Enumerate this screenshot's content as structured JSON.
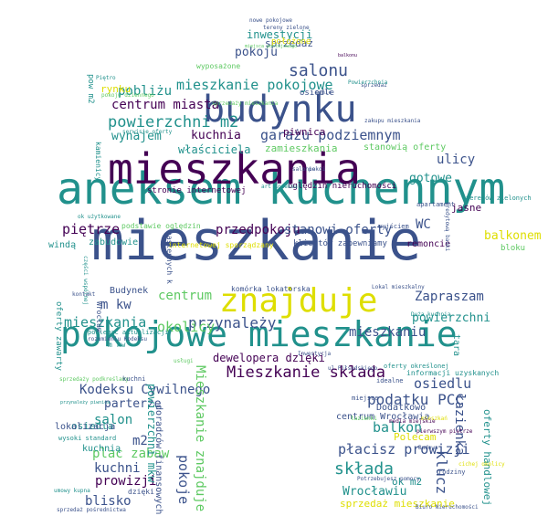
{
  "title": "",
  "palette": {
    "dark_purple": "#440154",
    "indigo": "#3b528b",
    "teal": "#21918c",
    "green": "#5ec962",
    "yellow": "#dede00",
    "background": "#ffffff"
  },
  "words": [
    {
      "text": "mieszkanie",
      "color": "indigo"
    },
    {
      "text": "aneksem kuchennym",
      "color": "teal"
    },
    {
      "text": "mieszkania",
      "color": "dark_purple"
    },
    {
      "text": "pokojowe mieszkanie",
      "color": "teal"
    },
    {
      "text": "budynku",
      "color": "indigo"
    },
    {
      "text": "znajduje",
      "color": "yellow"
    },
    {
      "text": "Mieszkanie składa",
      "color": "dark_purple"
    },
    {
      "text": "mieszkanie pokojowe",
      "color": "teal"
    },
    {
      "text": "powierzchni m2",
      "color": "teal"
    },
    {
      "text": "salonu",
      "color": "indigo"
    },
    {
      "text": "garażu podziemnym",
      "color": "indigo"
    },
    {
      "text": "centrum miasta",
      "color": "dark_purple"
    },
    {
      "text": "kuchnia",
      "color": "dark_purple"
    },
    {
      "text": "wynajem",
      "color": "teal"
    },
    {
      "text": "właściciela",
      "color": "teal"
    },
    {
      "text": "pokoju",
      "color": "indigo"
    },
    {
      "text": "sprzedaż",
      "color": "indigo"
    },
    {
      "text": "inwestycji",
      "color": "teal"
    },
    {
      "text": "pobliżu",
      "color": "teal"
    },
    {
      "text": "rynku",
      "color": "yellow"
    },
    {
      "text": "piętrze",
      "color": "dark_purple"
    },
    {
      "text": "przedpokoju",
      "color": "dark_purple"
    },
    {
      "text": "stanowi oferty",
      "color": "indigo"
    },
    {
      "text": "WC",
      "color": "indigo"
    },
    {
      "text": "balkonem",
      "color": "yellow"
    },
    {
      "text": "mieszkania",
      "color": "teal"
    },
    {
      "text": "przynależy",
      "color": "indigo"
    },
    {
      "text": "okolicy",
      "color": "green"
    },
    {
      "text": "m kw",
      "color": "indigo"
    },
    {
      "text": "Zapraszam",
      "color": "indigo"
    },
    {
      "text": "powierzchni",
      "color": "teal"
    },
    {
      "text": "mieszkaniu",
      "color": "indigo"
    },
    {
      "text": "Kodeksu Cywilnego",
      "color": "indigo"
    },
    {
      "text": "parterze",
      "color": "indigo"
    },
    {
      "text": "salon",
      "color": "teal"
    },
    {
      "text": "podatku PCC",
      "color": "indigo"
    },
    {
      "text": "osiedlu",
      "color": "indigo"
    },
    {
      "text": "balkon",
      "color": "teal"
    },
    {
      "text": "płacisz prowizji",
      "color": "indigo"
    },
    {
      "text": "składa",
      "color": "teal"
    },
    {
      "text": "Wrocławiu",
      "color": "teal"
    },
    {
      "text": "sprzedaż mieszkanie",
      "color": "yellow"
    },
    {
      "text": "plac zabaw",
      "color": "green"
    },
    {
      "text": "kuchni",
      "color": "indigo"
    },
    {
      "text": "prowizji",
      "color": "dark_purple"
    },
    {
      "text": "blisko",
      "color": "indigo"
    },
    {
      "text": "pokoje",
      "color": "indigo"
    },
    {
      "text": "Mieszkanie znajduje",
      "color": "green"
    },
    {
      "text": "m2",
      "color": "indigo"
    },
    {
      "text": "centrum",
      "color": "green"
    },
    {
      "text": "dewelopera dzięki",
      "color": "dark_purple"
    },
    {
      "text": "ulicy",
      "color": "indigo"
    },
    {
      "text": "gotowe",
      "color": "teal"
    },
    {
      "text": "jasne",
      "color": "dark_purple"
    },
    {
      "text": "zamieszkania",
      "color": "green"
    },
    {
      "text": "stanowią oferty",
      "color": "green"
    },
    {
      "text": "piwnica",
      "color": "dark_purple"
    },
    {
      "text": "stronie internetowej",
      "color": "dark_purple"
    },
    {
      "text": "oględzin nieruchomości",
      "color": "dark_purple"
    },
    {
      "text": "klientów zapewniamy",
      "color": "indigo"
    },
    {
      "text": "remoncie",
      "color": "dark_purple"
    },
    {
      "text": "bloku",
      "color": "green"
    },
    {
      "text": "zabudowie",
      "color": "teal"
    },
    {
      "text": "windą",
      "color": "teal"
    },
    {
      "text": "osiedla",
      "color": "teal"
    },
    {
      "text": "lokalizacja",
      "color": "indigo"
    },
    {
      "text": "Budynek",
      "color": "indigo"
    },
    {
      "text": "kuchnią",
      "color": "teal"
    },
    {
      "text": "Dodatkowo",
      "color": "indigo"
    },
    {
      "text": "centrum Wrocławia",
      "color": "indigo"
    },
    {
      "text": "łazienka",
      "color": "indigo"
    },
    {
      "text": "klucz",
      "color": "indigo"
    },
    {
      "text": "oferty handlowej",
      "color": "teal"
    },
    {
      "text": "ok m2",
      "color": "teal"
    },
    {
      "text": "Polecam",
      "color": "yellow"
    },
    {
      "text": "nowe pokojowe",
      "color": "indigo"
    },
    {
      "text": "położone",
      "color": "yellow"
    },
    {
      "text": "wyposażone",
      "color": "green"
    },
    {
      "text": "podstawie oględzin",
      "color": "green"
    },
    {
      "text": "internetowej sporządzany",
      "color": "yellow"
    },
    {
      "text": "oferty zawarty",
      "color": "teal"
    },
    {
      "text": "komórka lokatorska",
      "color": "indigo"
    },
    {
      "text": "powierzchni mkw",
      "color": "teal"
    },
    {
      "text": "doradców finansowych",
      "color": "indigo"
    },
    {
      "text": "następnych k",
      "color": "indigo"
    },
    {
      "text": "tara",
      "color": "teal"
    },
    {
      "text": "pow m2",
      "color": "teal"
    },
    {
      "text": "kamienicy",
      "color": "teal"
    },
    {
      "text": "dzięki",
      "color": "indigo"
    },
    {
      "text": "informacji uzyskanych",
      "color": "teal"
    },
    {
      "text": "podlegać aktualizacji",
      "color": "teal"
    },
    {
      "text": "art Kodeksu",
      "color": "teal"
    },
    {
      "text": "apartament",
      "color": "indigo"
    },
    {
      "text": "wyjściem",
      "color": "indigo"
    },
    {
      "text": "osiedle",
      "color": "indigo"
    },
    {
      "text": "cenie",
      "color": "indigo"
    },
    {
      "text": "idealne",
      "color": "indigo"
    },
    {
      "text": "miejsce",
      "color": "indigo"
    },
    {
      "text": "wysoki standard",
      "color": "teal"
    },
    {
      "text": "sprzedaż",
      "color": "indigo"
    },
    {
      "text": "rodziny",
      "color": "indigo"
    },
    {
      "text": "Wrocław",
      "color": "indigo"
    },
    {
      "text": "terenów zielonych",
      "color": "teal"
    },
    {
      "text": "tereny zielone",
      "color": "indigo"
    },
    {
      "text": "miejsca postojowego",
      "color": "green"
    },
    {
      "text": "balkonu",
      "color": "dark_purple"
    },
    {
      "text": "serwisie oferty",
      "color": "teal"
    },
    {
      "text": "ul Piłsudskiego",
      "color": "indigo"
    },
    {
      "text": "oferty określonej",
      "color": "teal"
    },
    {
      "text": "Inwestycja",
      "color": "indigo"
    },
    {
      "text": "Lokal mieszkalny",
      "color": "indigo"
    },
    {
      "text": "ok użytkowane",
      "color": "teal"
    },
    {
      "text": "pokoju dziennego",
      "color": "green"
    },
    {
      "text": "sprzedaży mieszkania",
      "color": "green"
    },
    {
      "text": "Powierzchnia",
      "color": "teal"
    },
    {
      "text": "zakupu mieszkania",
      "color": "indigo"
    },
    {
      "text": "pierwszym piętrze",
      "color": "dark_purple"
    },
    {
      "text": "Budowa",
      "color": "indigo"
    },
    {
      "text": "Biuro Nieruchomości",
      "color": "indigo"
    },
    {
      "text": "części wspólnej",
      "color": "teal"
    },
    {
      "text": "przynależy piwnica",
      "color": "teal"
    },
    {
      "text": "łazienki",
      "color": "green"
    },
    {
      "text": "sprzedaży podkreślamy",
      "color": "green"
    },
    {
      "text": "mieszkań",
      "color": "yellow"
    },
    {
      "text": "media miejskie",
      "color": "dark_purple"
    },
    {
      "text": "Potrzebujesz pomocy",
      "color": "indigo"
    },
    {
      "text": "sprzedaż pośrednictwa",
      "color": "indigo"
    },
    {
      "text": "umowy kupna",
      "color": "teal"
    },
    {
      "text": "cichej okolicy",
      "color": "yellow"
    },
    {
      "text": "kredytową banki",
      "color": "indigo"
    },
    {
      "text": "kontakt",
      "color": "indigo"
    },
    {
      "text": "rozumieniu Kodeksu",
      "color": "indigo"
    },
    {
      "text": "usługi",
      "color": "green"
    },
    {
      "text": "Duża kuchnia",
      "color": "teal"
    },
    {
      "text": "pokoi",
      "color": "indigo"
    },
    {
      "text": "salonie",
      "color": "indigo"
    },
    {
      "text": "Piętro",
      "color": "teal"
    },
    {
      "text": "m kw",
      "color": "teal"
    },
    {
      "text": "kuchni",
      "color": "indigo"
    }
  ]
}
